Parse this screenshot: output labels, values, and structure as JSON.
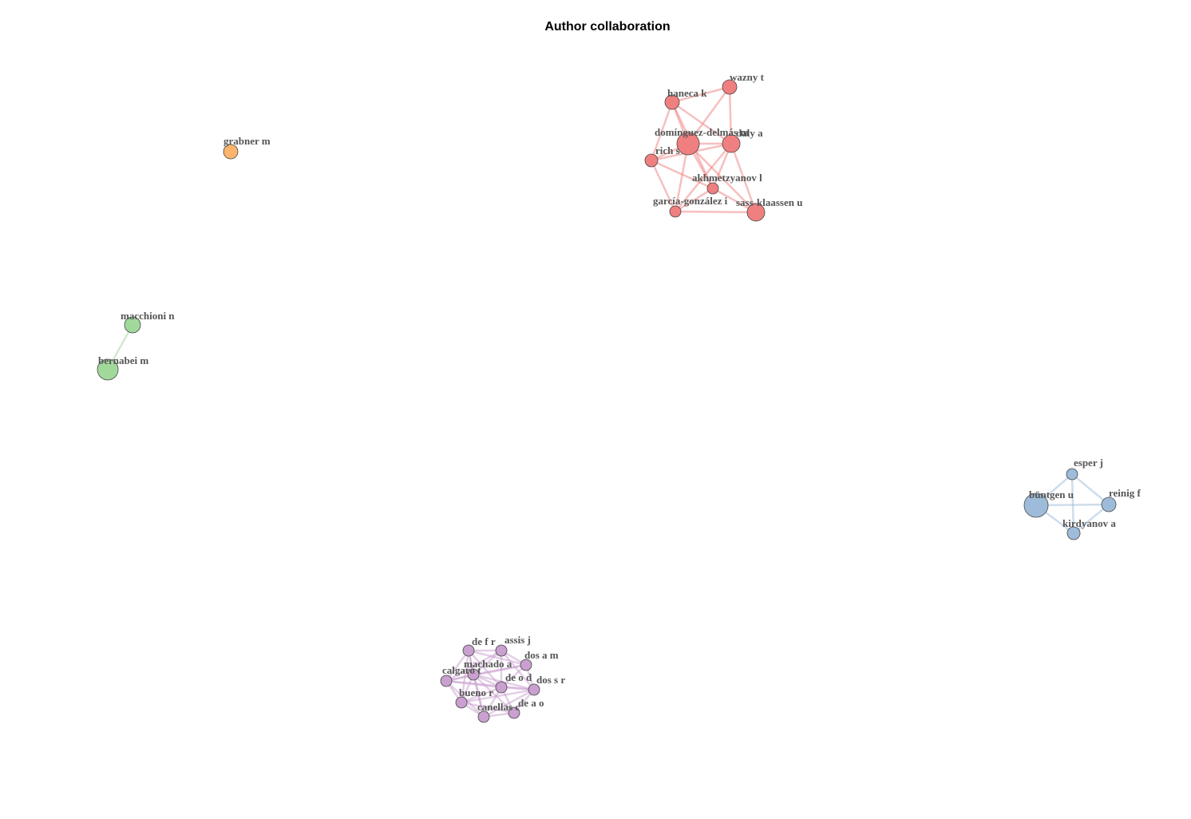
{
  "title": "Author collaboration",
  "clusters": [
    {
      "id": "red",
      "color": "#f08080"
    },
    {
      "id": "orange",
      "color": "#fdb46c"
    },
    {
      "id": "green",
      "color": "#a1d99b"
    },
    {
      "id": "blue",
      "color": "#9ebcda"
    },
    {
      "id": "purple",
      "color": "#c9a0cf"
    }
  ],
  "nodes": [
    {
      "id": "wazny",
      "label": "wazny t",
      "cluster": "red"
    },
    {
      "id": "haneca",
      "label": "haneca k",
      "cluster": "red"
    },
    {
      "id": "dominguez",
      "label": "domínguez-delmás m",
      "cluster": "red"
    },
    {
      "id": "daly",
      "label": "daly a",
      "cluster": "red"
    },
    {
      "id": "rich",
      "label": "rich s",
      "cluster": "red"
    },
    {
      "id": "akhmetzyanov",
      "label": "akhmetzyanov l",
      "cluster": "red"
    },
    {
      "id": "garcia",
      "label": "garcía-gonzález i",
      "cluster": "red"
    },
    {
      "id": "sass",
      "label": "sass-klaassen u",
      "cluster": "red"
    },
    {
      "id": "grabner",
      "label": "grabner m",
      "cluster": "orange"
    },
    {
      "id": "macchioni",
      "label": "macchioni n",
      "cluster": "green"
    },
    {
      "id": "bernabei",
      "label": "bernabei m",
      "cluster": "green"
    },
    {
      "id": "esper",
      "label": "esper j",
      "cluster": "blue"
    },
    {
      "id": "buntgen",
      "label": "büntgen u",
      "cluster": "blue"
    },
    {
      "id": "reinig",
      "label": "reinig f",
      "cluster": "blue"
    },
    {
      "id": "kirdyanov",
      "label": "kirdyanov a",
      "cluster": "blue"
    },
    {
      "id": "def",
      "label": "de f r",
      "cluster": "purple"
    },
    {
      "id": "assis",
      "label": "assis j",
      "cluster": "purple"
    },
    {
      "id": "dosam",
      "label": "dos a m",
      "cluster": "purple"
    },
    {
      "id": "machado",
      "label": "machado a",
      "cluster": "purple"
    },
    {
      "id": "calgaro",
      "label": "calgaro t",
      "cluster": "purple"
    },
    {
      "id": "deod",
      "label": "de o d",
      "cluster": "purple"
    },
    {
      "id": "dossr",
      "label": "dos s r",
      "cluster": "purple"
    },
    {
      "id": "bueno",
      "label": "bueno r",
      "cluster": "purple"
    },
    {
      "id": "deao",
      "label": "de a o",
      "cluster": "purple"
    },
    {
      "id": "canellas",
      "label": "canellas c",
      "cluster": "purple"
    }
  ],
  "edges": [
    [
      "haneca",
      "wazny"
    ],
    [
      "haneca",
      "dominguez"
    ],
    [
      "haneca",
      "daly"
    ],
    [
      "haneca",
      "rich"
    ],
    [
      "haneca",
      "akhmetzyanov"
    ],
    [
      "wazny",
      "dominguez"
    ],
    [
      "wazny",
      "daly"
    ],
    [
      "dominguez",
      "daly"
    ],
    [
      "dominguez",
      "rich"
    ],
    [
      "dominguez",
      "akhmetzyanov"
    ],
    [
      "dominguez",
      "garcia"
    ],
    [
      "dominguez",
      "sass"
    ],
    [
      "daly",
      "rich"
    ],
    [
      "daly",
      "akhmetzyanov"
    ],
    [
      "daly",
      "sass"
    ],
    [
      "daly",
      "garcia"
    ],
    [
      "rich",
      "garcia"
    ],
    [
      "rich",
      "akhmetzyanov"
    ],
    [
      "akhmetzyanov",
      "garcia"
    ],
    [
      "akhmetzyanov",
      "sass"
    ],
    [
      "garcia",
      "sass"
    ],
    [
      "macchioni",
      "bernabei"
    ],
    [
      "buntgen",
      "esper"
    ],
    [
      "buntgen",
      "reinig"
    ],
    [
      "buntgen",
      "kirdyanov"
    ],
    [
      "esper",
      "reinig"
    ],
    [
      "esper",
      "kirdyanov"
    ],
    [
      "reinig",
      "kirdyanov"
    ],
    [
      "def",
      "assis"
    ],
    [
      "def",
      "machado"
    ],
    [
      "def",
      "calgaro"
    ],
    [
      "def",
      "deod"
    ],
    [
      "def",
      "bueno"
    ],
    [
      "def",
      "dosam"
    ],
    [
      "def",
      "canellas"
    ],
    [
      "assis",
      "dosam"
    ],
    [
      "assis",
      "machado"
    ],
    [
      "assis",
      "deod"
    ],
    [
      "assis",
      "calgaro"
    ],
    [
      "assis",
      "dossr"
    ],
    [
      "dosam",
      "machado"
    ],
    [
      "dosam",
      "deod"
    ],
    [
      "dosam",
      "dossr"
    ],
    [
      "dosam",
      "calgaro"
    ],
    [
      "machado",
      "calgaro"
    ],
    [
      "machado",
      "deod"
    ],
    [
      "machado",
      "bueno"
    ],
    [
      "machado",
      "dossr"
    ],
    [
      "machado",
      "canellas"
    ],
    [
      "machado",
      "deao"
    ],
    [
      "calgaro",
      "bueno"
    ],
    [
      "calgaro",
      "deod"
    ],
    [
      "calgaro",
      "canellas"
    ],
    [
      "calgaro",
      "dossr"
    ],
    [
      "deod",
      "dossr"
    ],
    [
      "deod",
      "bueno"
    ],
    [
      "deod",
      "deao"
    ],
    [
      "deod",
      "canellas"
    ],
    [
      "dossr",
      "deao"
    ],
    [
      "dossr",
      "bueno"
    ],
    [
      "dossr",
      "canellas"
    ],
    [
      "bueno",
      "canellas"
    ],
    [
      "bueno",
      "deao"
    ],
    [
      "deao",
      "canellas"
    ]
  ]
}
